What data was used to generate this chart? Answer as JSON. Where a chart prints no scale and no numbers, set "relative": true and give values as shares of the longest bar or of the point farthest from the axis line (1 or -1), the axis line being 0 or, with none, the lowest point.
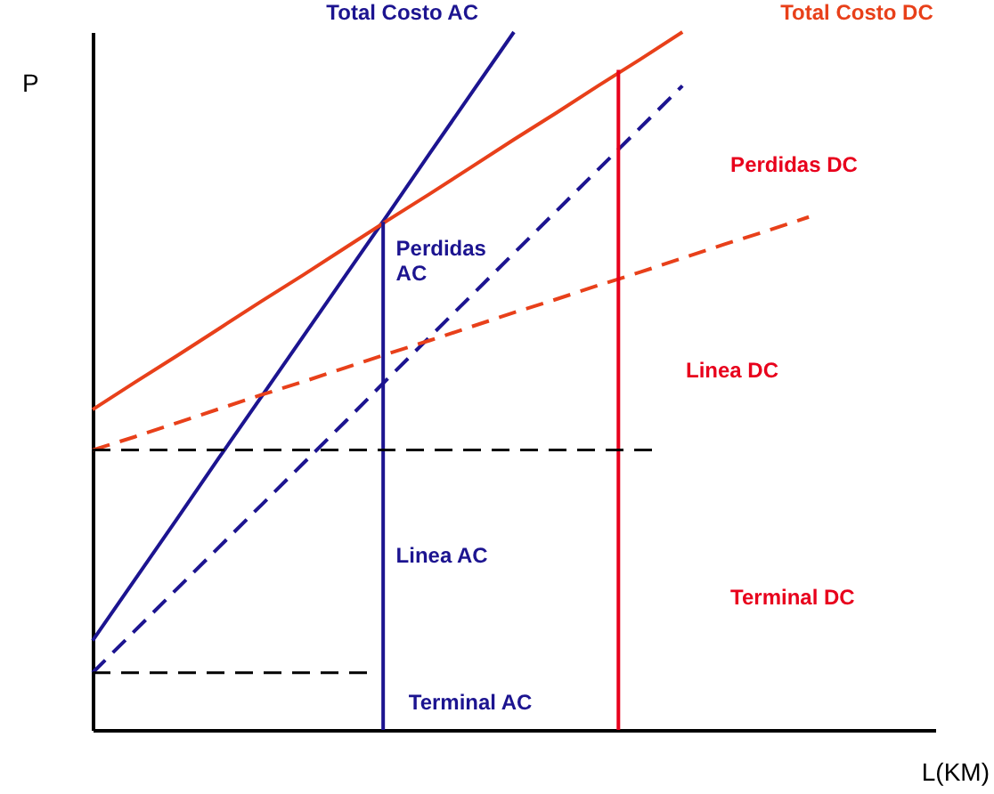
{
  "chart_data": {
    "type": "line",
    "relative": true,
    "xlabel": "L(KM)",
    "ylabel": "P",
    "tick_labels": false,
    "grid": false,
    "marker": "none",
    "categories": [
      null,
      null,
      null,
      null,
      null,
      null,
      null,
      null,
      null,
      null,
      null,
      null,
      null,
      null,
      null,
      null,
      null,
      null,
      null,
      null,
      null
    ],
    "series": [
      {
        "name": "Total Costo AC",
        "color": "#1c1490",
        "line_style": "solid",
        "values": [
          0.128,
          0.215,
          0.302,
          0.39,
          0.477,
          0.564,
          0.651,
          0.738,
          0.826,
          0.913,
          1.0,
          null,
          null,
          null,
          null,
          null,
          null,
          null,
          null,
          null,
          null
        ]
      },
      {
        "color": "#1c1490",
        "line_style": "dashed",
        "values": [
          0.082,
          0.142,
          0.202,
          0.262,
          0.322,
          0.382,
          0.442,
          0.503,
          0.563,
          0.623,
          0.683,
          0.743,
          0.803,
          0.863,
          0.923,
          null,
          null,
          null,
          null,
          null,
          null
        ]
      },
      {
        "name": "Total Costo DC",
        "color": "#e8401a",
        "line_style": "solid",
        "values": [
          0.459,
          0.498,
          0.536,
          0.575,
          0.614,
          0.652,
          0.691,
          0.73,
          0.768,
          0.807,
          0.846,
          0.884,
          0.923,
          0.961,
          1.0,
          null,
          null,
          null,
          null,
          null,
          null
        ]
      },
      {
        "color": "#e8401a",
        "line_style": "dashed",
        "values": [
          0.401,
          0.42,
          0.44,
          0.46,
          0.48,
          0.499,
          0.519,
          0.539,
          0.558,
          0.578,
          0.598,
          0.617,
          0.637,
          0.656,
          0.676,
          0.696,
          0.715,
          0.735,
          null,
          null,
          null
        ]
      }
    ],
    "ref_lines": [
      {
        "axis": "y",
        "value": 0.401,
        "color": "#000000",
        "line_style": "dashed"
      },
      {
        "axis": "y",
        "value": 0.082,
        "color": "#000000",
        "line_style": "dashed"
      }
    ],
    "annotations": [
      "Perdidas DC",
      "Linea DC",
      "Terminal DC",
      "Perdidas AC",
      "Linea AC",
      "Terminal AC"
    ]
  }
}
